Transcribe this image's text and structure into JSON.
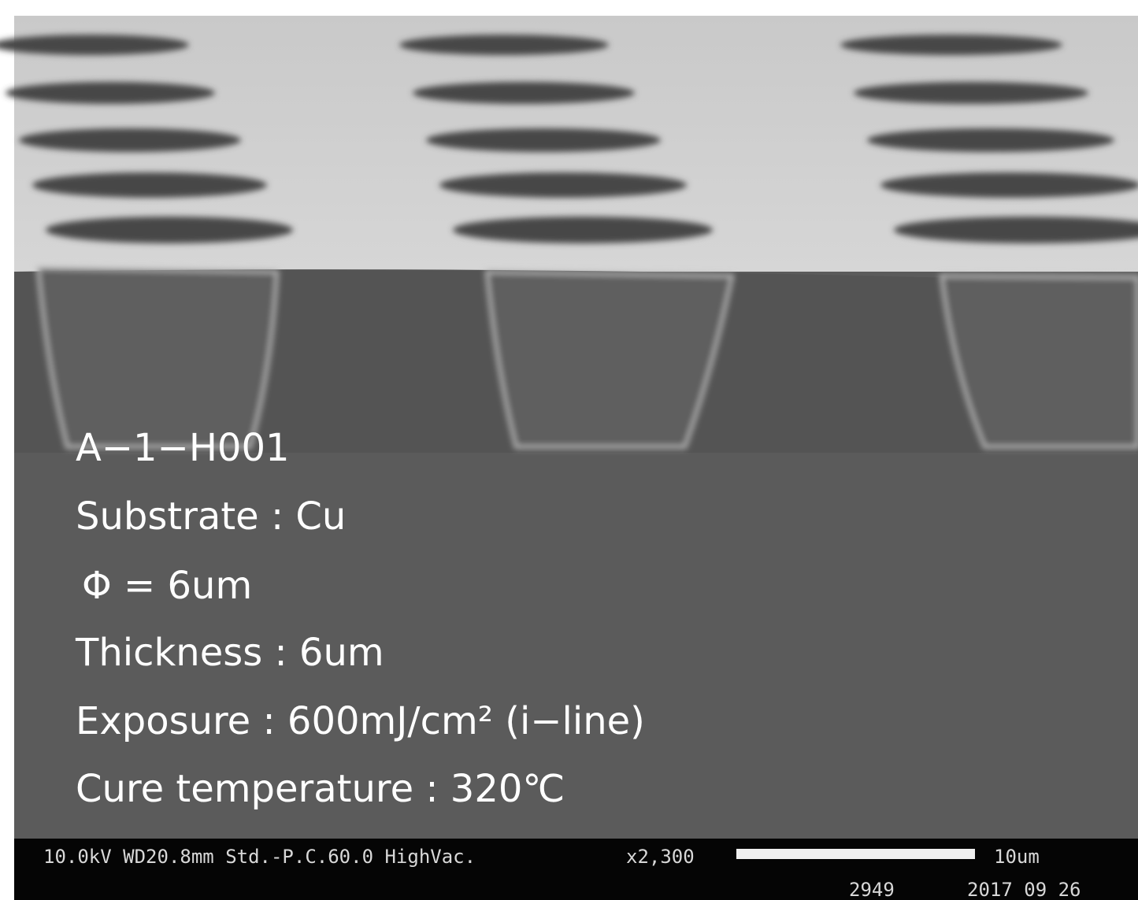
{
  "annotations": [
    "A−1−H001",
    "Substrate : Cu",
    "Φ = 6um",
    "Thickness : 6um",
    "Exposure : 600mJ/cm² (i−line)",
    "Cure temperature : 320℃"
  ],
  "info_bar": {
    "conditions": "10.0kV WD20.8mm Std.-P.C.60.0 HighVac.",
    "magnification": "x2,300",
    "scale": "10um",
    "image_number": "2949",
    "date": "2017 09 26"
  }
}
